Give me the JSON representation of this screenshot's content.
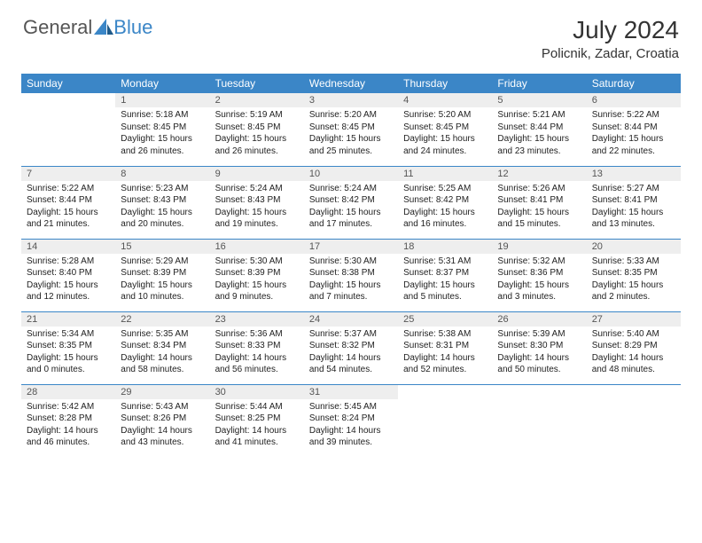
{
  "brand": {
    "text1": "General",
    "text2": "Blue"
  },
  "title": "July 2024",
  "location": "Policnik, Zadar, Croatia",
  "colors": {
    "header_bg": "#3b86c7",
    "header_text": "#ffffff",
    "daynum_bg": "#eeeeee",
    "daynum_text": "#555555",
    "border": "#3b86c7",
    "body_text": "#222222",
    "page_bg": "#ffffff"
  },
  "fonts": {
    "title_size": 28,
    "location_size": 15,
    "weekday_size": 12,
    "body_size": 10
  },
  "weekdays": [
    "Sunday",
    "Monday",
    "Tuesday",
    "Wednesday",
    "Thursday",
    "Friday",
    "Saturday"
  ],
  "weeks": [
    [
      null,
      {
        "n": "1",
        "sr": "Sunrise: 5:18 AM",
        "ss": "Sunset: 8:45 PM",
        "d1": "Daylight: 15 hours",
        "d2": "and 26 minutes."
      },
      {
        "n": "2",
        "sr": "Sunrise: 5:19 AM",
        "ss": "Sunset: 8:45 PM",
        "d1": "Daylight: 15 hours",
        "d2": "and 26 minutes."
      },
      {
        "n": "3",
        "sr": "Sunrise: 5:20 AM",
        "ss": "Sunset: 8:45 PM",
        "d1": "Daylight: 15 hours",
        "d2": "and 25 minutes."
      },
      {
        "n": "4",
        "sr": "Sunrise: 5:20 AM",
        "ss": "Sunset: 8:45 PM",
        "d1": "Daylight: 15 hours",
        "d2": "and 24 minutes."
      },
      {
        "n": "5",
        "sr": "Sunrise: 5:21 AM",
        "ss": "Sunset: 8:44 PM",
        "d1": "Daylight: 15 hours",
        "d2": "and 23 minutes."
      },
      {
        "n": "6",
        "sr": "Sunrise: 5:22 AM",
        "ss": "Sunset: 8:44 PM",
        "d1": "Daylight: 15 hours",
        "d2": "and 22 minutes."
      }
    ],
    [
      {
        "n": "7",
        "sr": "Sunrise: 5:22 AM",
        "ss": "Sunset: 8:44 PM",
        "d1": "Daylight: 15 hours",
        "d2": "and 21 minutes."
      },
      {
        "n": "8",
        "sr": "Sunrise: 5:23 AM",
        "ss": "Sunset: 8:43 PM",
        "d1": "Daylight: 15 hours",
        "d2": "and 20 minutes."
      },
      {
        "n": "9",
        "sr": "Sunrise: 5:24 AM",
        "ss": "Sunset: 8:43 PM",
        "d1": "Daylight: 15 hours",
        "d2": "and 19 minutes."
      },
      {
        "n": "10",
        "sr": "Sunrise: 5:24 AM",
        "ss": "Sunset: 8:42 PM",
        "d1": "Daylight: 15 hours",
        "d2": "and 17 minutes."
      },
      {
        "n": "11",
        "sr": "Sunrise: 5:25 AM",
        "ss": "Sunset: 8:42 PM",
        "d1": "Daylight: 15 hours",
        "d2": "and 16 minutes."
      },
      {
        "n": "12",
        "sr": "Sunrise: 5:26 AM",
        "ss": "Sunset: 8:41 PM",
        "d1": "Daylight: 15 hours",
        "d2": "and 15 minutes."
      },
      {
        "n": "13",
        "sr": "Sunrise: 5:27 AM",
        "ss": "Sunset: 8:41 PM",
        "d1": "Daylight: 15 hours",
        "d2": "and 13 minutes."
      }
    ],
    [
      {
        "n": "14",
        "sr": "Sunrise: 5:28 AM",
        "ss": "Sunset: 8:40 PM",
        "d1": "Daylight: 15 hours",
        "d2": "and 12 minutes."
      },
      {
        "n": "15",
        "sr": "Sunrise: 5:29 AM",
        "ss": "Sunset: 8:39 PM",
        "d1": "Daylight: 15 hours",
        "d2": "and 10 minutes."
      },
      {
        "n": "16",
        "sr": "Sunrise: 5:30 AM",
        "ss": "Sunset: 8:39 PM",
        "d1": "Daylight: 15 hours",
        "d2": "and 9 minutes."
      },
      {
        "n": "17",
        "sr": "Sunrise: 5:30 AM",
        "ss": "Sunset: 8:38 PM",
        "d1": "Daylight: 15 hours",
        "d2": "and 7 minutes."
      },
      {
        "n": "18",
        "sr": "Sunrise: 5:31 AM",
        "ss": "Sunset: 8:37 PM",
        "d1": "Daylight: 15 hours",
        "d2": "and 5 minutes."
      },
      {
        "n": "19",
        "sr": "Sunrise: 5:32 AM",
        "ss": "Sunset: 8:36 PM",
        "d1": "Daylight: 15 hours",
        "d2": "and 3 minutes."
      },
      {
        "n": "20",
        "sr": "Sunrise: 5:33 AM",
        "ss": "Sunset: 8:35 PM",
        "d1": "Daylight: 15 hours",
        "d2": "and 2 minutes."
      }
    ],
    [
      {
        "n": "21",
        "sr": "Sunrise: 5:34 AM",
        "ss": "Sunset: 8:35 PM",
        "d1": "Daylight: 15 hours",
        "d2": "and 0 minutes."
      },
      {
        "n": "22",
        "sr": "Sunrise: 5:35 AM",
        "ss": "Sunset: 8:34 PM",
        "d1": "Daylight: 14 hours",
        "d2": "and 58 minutes."
      },
      {
        "n": "23",
        "sr": "Sunrise: 5:36 AM",
        "ss": "Sunset: 8:33 PM",
        "d1": "Daylight: 14 hours",
        "d2": "and 56 minutes."
      },
      {
        "n": "24",
        "sr": "Sunrise: 5:37 AM",
        "ss": "Sunset: 8:32 PM",
        "d1": "Daylight: 14 hours",
        "d2": "and 54 minutes."
      },
      {
        "n": "25",
        "sr": "Sunrise: 5:38 AM",
        "ss": "Sunset: 8:31 PM",
        "d1": "Daylight: 14 hours",
        "d2": "and 52 minutes."
      },
      {
        "n": "26",
        "sr": "Sunrise: 5:39 AM",
        "ss": "Sunset: 8:30 PM",
        "d1": "Daylight: 14 hours",
        "d2": "and 50 minutes."
      },
      {
        "n": "27",
        "sr": "Sunrise: 5:40 AM",
        "ss": "Sunset: 8:29 PM",
        "d1": "Daylight: 14 hours",
        "d2": "and 48 minutes."
      }
    ],
    [
      {
        "n": "28",
        "sr": "Sunrise: 5:42 AM",
        "ss": "Sunset: 8:28 PM",
        "d1": "Daylight: 14 hours",
        "d2": "and 46 minutes."
      },
      {
        "n": "29",
        "sr": "Sunrise: 5:43 AM",
        "ss": "Sunset: 8:26 PM",
        "d1": "Daylight: 14 hours",
        "d2": "and 43 minutes."
      },
      {
        "n": "30",
        "sr": "Sunrise: 5:44 AM",
        "ss": "Sunset: 8:25 PM",
        "d1": "Daylight: 14 hours",
        "d2": "and 41 minutes."
      },
      {
        "n": "31",
        "sr": "Sunrise: 5:45 AM",
        "ss": "Sunset: 8:24 PM",
        "d1": "Daylight: 14 hours",
        "d2": "and 39 minutes."
      },
      null,
      null,
      null
    ]
  ]
}
